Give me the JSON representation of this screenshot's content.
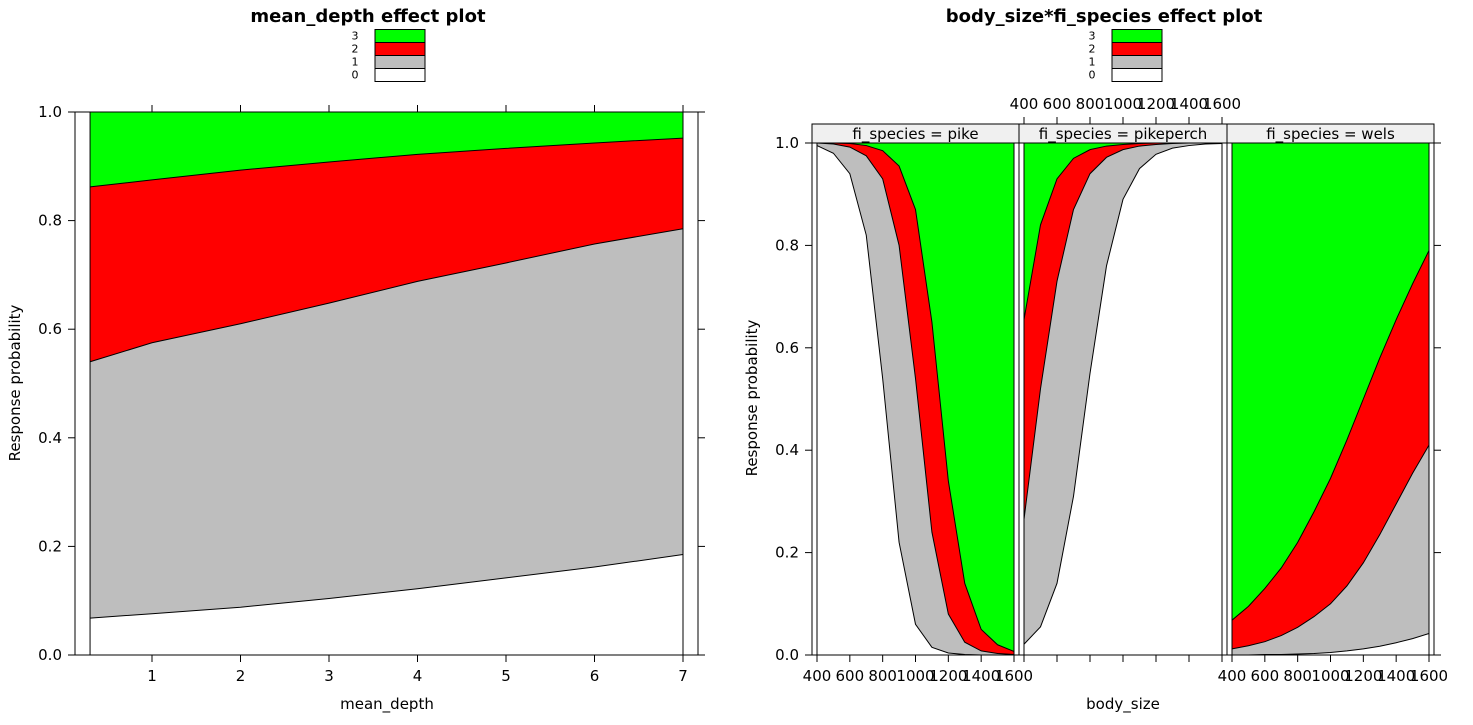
{
  "colors": {
    "0": "#ffffff",
    "1": "#bebebe",
    "2": "#ff0000",
    "3": "#00ff00"
  },
  "chart_data": [
    {
      "type": "area",
      "title": "mean_depth effect plot",
      "xlabel": "mean_depth",
      "ylabel": "Response probability",
      "legend": [
        "3",
        "2",
        "1",
        "0"
      ],
      "xlim": [
        0.3,
        7
      ],
      "ylim": [
        0,
        1
      ],
      "xticks": [
        "1",
        "2",
        "3",
        "4",
        "5",
        "6",
        "7"
      ],
      "yticks": [
        "0.0",
        "0.2",
        "0.4",
        "0.6",
        "0.8",
        "1.0"
      ],
      "x": [
        0.3,
        1,
        2,
        3,
        4,
        5,
        6,
        7
      ],
      "cumulative": [
        {
          "name": "0",
          "values": [
            0.068,
            0.076,
            0.088,
            0.104,
            0.122,
            0.142,
            0.162,
            0.185
          ]
        },
        {
          "name": "1",
          "values": [
            0.54,
            0.575,
            0.61,
            0.648,
            0.688,
            0.722,
            0.757,
            0.785
          ]
        },
        {
          "name": "2",
          "values": [
            0.862,
            0.875,
            0.893,
            0.908,
            0.922,
            0.933,
            0.943,
            0.952
          ]
        }
      ]
    },
    {
      "type": "area",
      "title": "body_size*fi_species effect plot",
      "xlabel": "body_size",
      "ylabel": "Response probability",
      "legend": [
        "3",
        "2",
        "1",
        "0"
      ],
      "xlim": [
        400,
        1600
      ],
      "ylim": [
        0,
        1
      ],
      "xticks": [
        "400",
        "600",
        "800",
        "1000",
        "1200",
        "1400",
        "1600"
      ],
      "yticks": [
        "0.0",
        "0.2",
        "0.4",
        "0.6",
        "0.8",
        "1.0"
      ],
      "x": [
        400,
        500,
        600,
        700,
        800,
        900,
        1000,
        1100,
        1200,
        1300,
        1400,
        1500,
        1600
      ],
      "panels": [
        {
          "strip": "fi_species = pike",
          "cumulative": [
            {
              "name": "0",
              "values": [
                0.995,
                0.98,
                0.94,
                0.82,
                0.54,
                0.22,
                0.06,
                0.015,
                0.004,
                0.001,
                0.0,
                0.0,
                0.0
              ]
            },
            {
              "name": "1",
              "values": [
                1.0,
                0.998,
                0.992,
                0.975,
                0.93,
                0.8,
                0.54,
                0.24,
                0.08,
                0.025,
                0.008,
                0.003,
                0.001
              ]
            },
            {
              "name": "2",
              "values": [
                1.0,
                1.0,
                0.999,
                0.995,
                0.985,
                0.955,
                0.87,
                0.65,
                0.34,
                0.14,
                0.05,
                0.02,
                0.007
              ]
            }
          ]
        },
        {
          "strip": "fi_species = pikeperch",
          "cumulative": [
            {
              "name": "0",
              "values": [
                0.021,
                0.055,
                0.14,
                0.31,
                0.55,
                0.76,
                0.89,
                0.95,
                0.978,
                0.99,
                0.995,
                0.998,
                0.999
              ]
            },
            {
              "name": "1",
              "values": [
                0.265,
                0.52,
                0.73,
                0.87,
                0.94,
                0.972,
                0.987,
                0.994,
                0.997,
                0.999,
                1.0,
                1.0,
                1.0
              ]
            },
            {
              "name": "2",
              "values": [
                0.655,
                0.84,
                0.93,
                0.97,
                0.987,
                0.994,
                0.997,
                0.999,
                1.0,
                1.0,
                1.0,
                1.0,
                1.0
              ]
            }
          ]
        },
        {
          "strip": "fi_species = wels",
          "cumulative": [
            {
              "name": "0",
              "values": [
                0.0,
                0.0,
                0.001,
                0.001,
                0.002,
                0.003,
                0.005,
                0.008,
                0.012,
                0.017,
                0.024,
                0.032,
                0.042
              ]
            },
            {
              "name": "1",
              "values": [
                0.012,
                0.018,
                0.026,
                0.038,
                0.054,
                0.075,
                0.1,
                0.135,
                0.18,
                0.235,
                0.295,
                0.355,
                0.41
              ]
            },
            {
              "name": "2",
              "values": [
                0.068,
                0.095,
                0.13,
                0.17,
                0.22,
                0.28,
                0.345,
                0.42,
                0.5,
                0.58,
                0.655,
                0.725,
                0.79
              ]
            }
          ]
        }
      ]
    }
  ]
}
